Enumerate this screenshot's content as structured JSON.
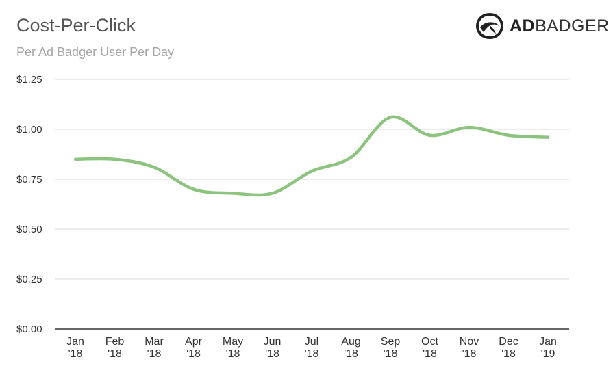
{
  "header": {
    "title": "Cost-Per-Click",
    "subtitle": "Per Ad Badger User Per Day"
  },
  "brand": {
    "bold_text": "AD",
    "light_text": "BADGER",
    "logo_icon": "badger-head-icon"
  },
  "colors": {
    "line": "#8cc47f",
    "grid": "#d9d9d9",
    "axis": "#333333"
  },
  "chart_data": {
    "type": "line",
    "title": "Cost-Per-Click",
    "subtitle": "Per Ad Badger User Per Day",
    "xlabel": "",
    "ylabel": "",
    "categories": [
      [
        "Jan",
        "'18"
      ],
      [
        "Feb",
        "'18"
      ],
      [
        "Mar",
        "'18"
      ],
      [
        "Apr",
        "'18"
      ],
      [
        "May",
        "'18"
      ],
      [
        "Jun",
        "'18"
      ],
      [
        "Jul",
        "'18"
      ],
      [
        "Aug",
        "'18"
      ],
      [
        "Sep",
        "'18"
      ],
      [
        "Oct",
        "'18"
      ],
      [
        "Nov",
        "'18"
      ],
      [
        "Dec",
        "'18"
      ],
      [
        "Jan",
        "'19"
      ]
    ],
    "y_ticks": [
      "$0.00",
      "$0.25",
      "$0.50",
      "$0.75",
      "$1.00",
      "$1.25"
    ],
    "ylim": [
      0,
      1.25
    ],
    "grid": true,
    "legend": "none",
    "series": [
      {
        "values": [
          0.85,
          0.85,
          0.81,
          0.7,
          0.68,
          0.68,
          0.79,
          0.86,
          1.06,
          0.97,
          1.01,
          0.97,
          0.96
        ]
      }
    ]
  }
}
